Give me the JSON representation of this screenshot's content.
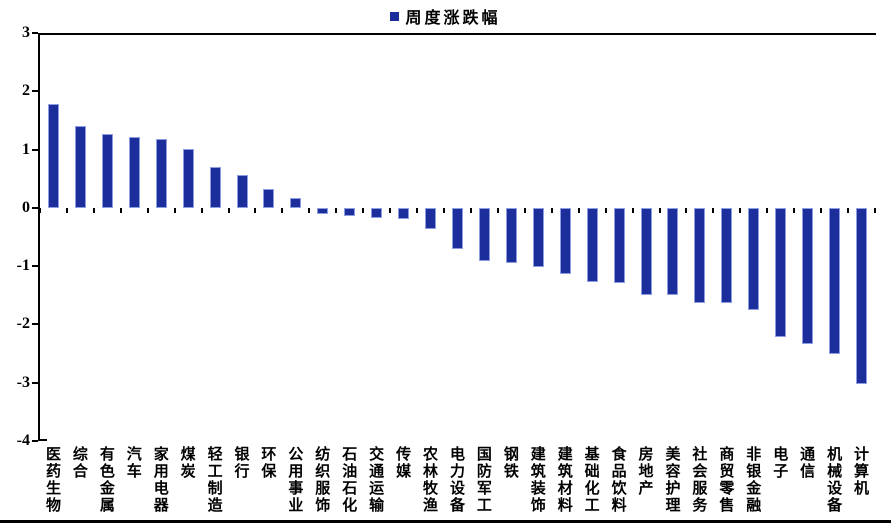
{
  "legend": {
    "label": "周度涨跌幅",
    "marker": "blue-square"
  },
  "colors": {
    "bar_fill": "#1C2D9C",
    "bar_border": "#8E9CE0",
    "axis": "#000000",
    "text": "#000000",
    "background": "#FFFFFF"
  },
  "chart_data": {
    "type": "bar",
    "title": "",
    "xlabel": "",
    "ylabel": "",
    "legend": [
      "周度涨跌幅"
    ],
    "legend_position": "top-center",
    "grid": false,
    "ylim": [
      -4,
      3
    ],
    "y_ticks": [
      3,
      2,
      1,
      0,
      -1,
      -2,
      -3,
      -4
    ],
    "categories": [
      "医药生物",
      "综合",
      "有色金属",
      "汽车",
      "家用电器",
      "煤炭",
      "轻工制造",
      "银行",
      "环保",
      "公用事业",
      "纺织服饰",
      "石油石化",
      "交通运输",
      "传媒",
      "农林牧渔",
      "电力设备",
      "国防军工",
      "钢铁",
      "建筑装饰",
      "建筑材料",
      "基础化工",
      "食品饮料",
      "房地产",
      "美容护理",
      "社会服务",
      "商贸零售",
      "非银金融",
      "电子",
      "通信",
      "机械设备",
      "计算机"
    ],
    "values": [
      1.78,
      1.4,
      1.26,
      1.22,
      1.18,
      1.01,
      0.7,
      0.57,
      0.33,
      0.17,
      -0.1,
      -0.14,
      -0.18,
      -0.19,
      -0.36,
      -0.71,
      -0.91,
      -0.95,
      -1.01,
      -1.14,
      -1.27,
      -1.29,
      -1.49,
      -1.5,
      -1.63,
      -1.64,
      -1.76,
      -2.22,
      -2.34,
      -2.51,
      -3.02
    ]
  }
}
